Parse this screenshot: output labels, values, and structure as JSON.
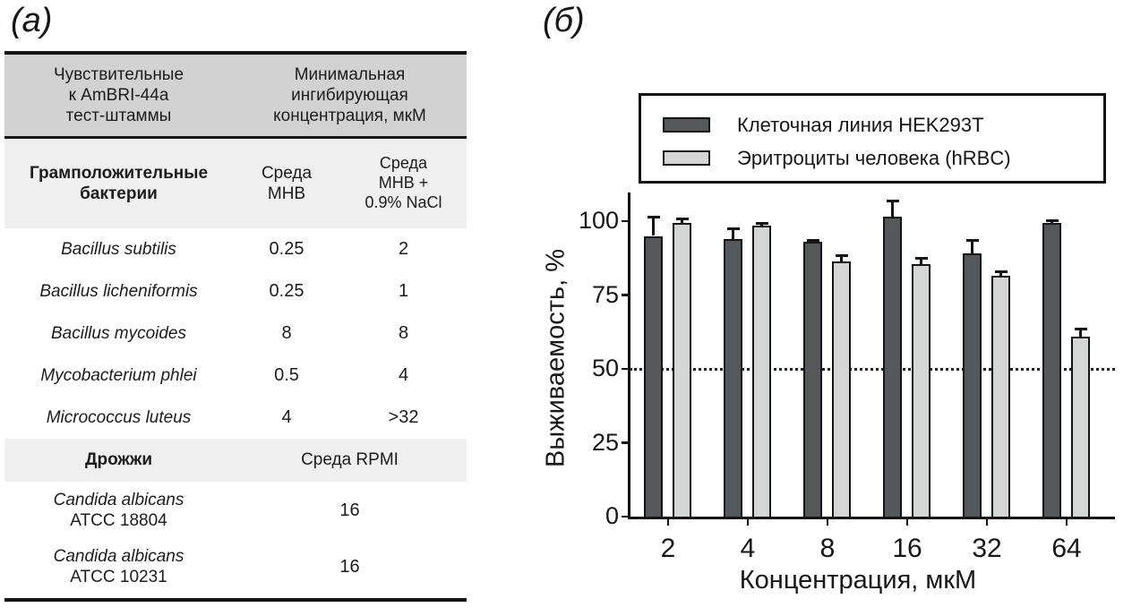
{
  "figure": {
    "panel_a_label": "(а)",
    "panel_b_label": "(б)"
  },
  "table": {
    "header": {
      "col1": "Чувствительные\nк AmBRI-44a\nтест-штаммы",
      "col23": "Минимальная\nингибирующая\nконцентрация, мкМ"
    },
    "gram_positive": {
      "group_label": "Грамположительные\nбактерии",
      "col2_header": "Среда\nMHB",
      "col3_header": "Среда\nMHB +\n0.9% NaCl",
      "rows": [
        {
          "species": "Bacillus subtilis",
          "mic_mhb": "0.25",
          "mic_mhb_nacl": "2"
        },
        {
          "species": "Bacillus licheniformis",
          "mic_mhb": "0.25",
          "mic_mhb_nacl": "1"
        },
        {
          "species": "Bacillus mycoides",
          "mic_mhb": "8",
          "mic_mhb_nacl": "8"
        },
        {
          "species": "Mycobacterium phlei",
          "mic_mhb": "0.5",
          "mic_mhb_nacl": "4"
        },
        {
          "species": "Micrococcus luteus",
          "mic_mhb": "4",
          "mic_mhb_nacl": ">32"
        }
      ]
    },
    "yeast": {
      "group_label": "Дрожжи",
      "medium_header": "Среда RPMI",
      "rows": [
        {
          "species": "Candida albicans",
          "strain": "ATCC 18804",
          "mic": "16"
        },
        {
          "species": "Candida albicans",
          "strain": "ATCC 10231",
          "mic": "16"
        }
      ]
    }
  },
  "chart_data": {
    "type": "bar",
    "title": "",
    "categories": [
      "2",
      "4",
      "8",
      "16",
      "32",
      "64"
    ],
    "series": [
      {
        "name": "Клеточная линия HEK293T",
        "color": "#54585a",
        "values": [
          95,
          94,
          93,
          101.5,
          89,
          99.5
        ],
        "errors": [
          6.5,
          3.5,
          0.7,
          5.5,
          4.5,
          0.7
        ]
      },
      {
        "name": "Эритроциты человека (hRBC)",
        "color": "#d4d6d5",
        "values": [
          99.5,
          98.5,
          86.5,
          85.5,
          81.5,
          61
        ],
        "errors": [
          1.5,
          1,
          2,
          2,
          1.5,
          2.5
        ]
      }
    ],
    "xlabel": "Концентрация, мкМ",
    "ylabel": "Выживаемость, %",
    "yticks": [
      0,
      25,
      50,
      75,
      100
    ],
    "ylim": [
      0,
      110
    ],
    "reference_line_y": 50,
    "legend_position": "top",
    "grid": false
  },
  "colors": {
    "table_header_bg": "#d2d2d2",
    "table_group_bg": "#efefef",
    "axis_color": "#141414",
    "text_color": "#1c1c1c"
  }
}
